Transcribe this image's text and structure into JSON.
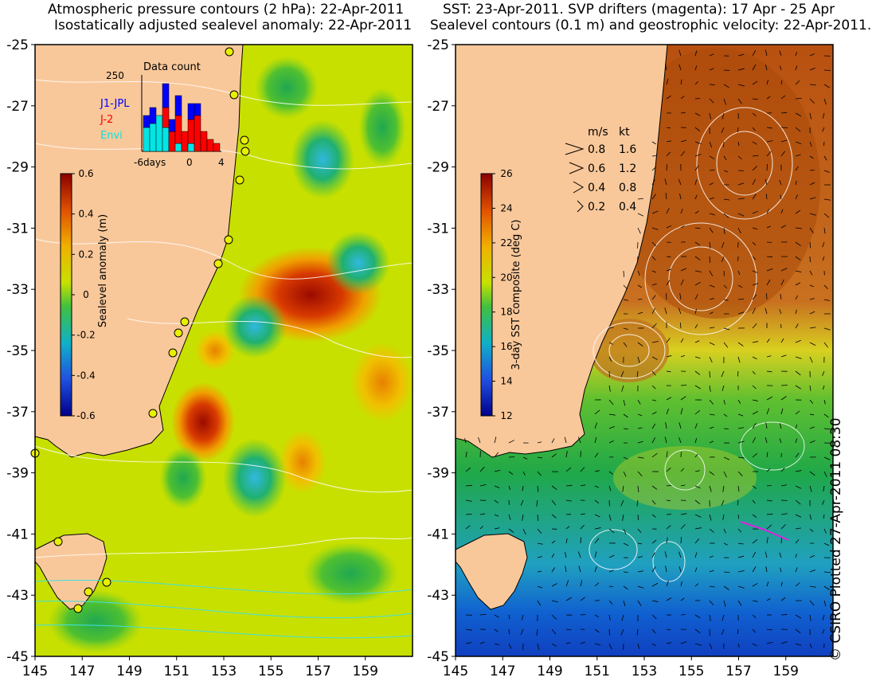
{
  "left_panel": {
    "title_line1": "Atmospheric pressure contours (2 hPa): 22-Apr-2011",
    "title_line2": "Isostatically adjusted sealevel anomaly: 22-Apr-2011",
    "lat_labels": [
      "-25",
      "-27",
      "-29",
      "-31",
      "-33",
      "-35",
      "-37",
      "-39",
      "-41",
      "-43",
      "-45"
    ],
    "lon_labels": [
      "145",
      "147",
      "149",
      "151",
      "153",
      "155",
      "157",
      "159"
    ],
    "colorbar_label": "Sealevel anomaly (m)",
    "colorbar_ticks": [
      "0.6",
      "0.4",
      "0.2",
      "0",
      "-0.2",
      "-0.4",
      "-0.6"
    ],
    "inset": {
      "title": "Data count",
      "ymax": "250",
      "xlabels": [
        "-6days",
        "0",
        "4"
      ],
      "legend": [
        {
          "label": "J1-JPL",
          "color": "#0000ff"
        },
        {
          "label": "J-2",
          "color": "#ff0000"
        },
        {
          "label": "Envi",
          "color": "#00e5e5"
        }
      ]
    }
  },
  "right_panel": {
    "title_line1": "SST: 23-Apr-2011. SVP drifters (magenta): 17 Apr - 25 Apr",
    "title_line2": "Sealevel contours (0.1 m) and geostrophic velocity: 22-Apr-2011.",
    "lat_labels": [
      "-25",
      "-27",
      "-29",
      "-31",
      "-33",
      "-35",
      "-37",
      "-39",
      "-41",
      "-43",
      "-45"
    ],
    "lon_labels": [
      "145",
      "147",
      "149",
      "151",
      "153",
      "155",
      "157",
      "159"
    ],
    "colorbar_label": "3-day SST composite (deg C)",
    "colorbar_ticks": [
      "26",
      "24",
      "22",
      "20",
      "18",
      "16",
      "14",
      "12"
    ],
    "velocity_legend": {
      "header_ms": "m/s",
      "header_kt": "kt",
      "rows": [
        {
          "ms": "0.8",
          "kt": "1.6"
        },
        {
          "ms": "0.6",
          "kt": "1.2"
        },
        {
          "ms": "0.4",
          "kt": "0.8"
        },
        {
          "ms": "0.2",
          "kt": "0.4"
        }
      ]
    }
  },
  "credit": "© CSIRO Plotted 27-Apr-2011 08:30",
  "colors": {
    "land": "#f9c89a",
    "sla_high": "#a01000",
    "sla_mid": "#c8e100",
    "sla_low": "#1ab4c8",
    "sst_warm": "#c06818",
    "sst_mid": "#2ab040",
    "sst_cold": "#1560d0"
  }
}
